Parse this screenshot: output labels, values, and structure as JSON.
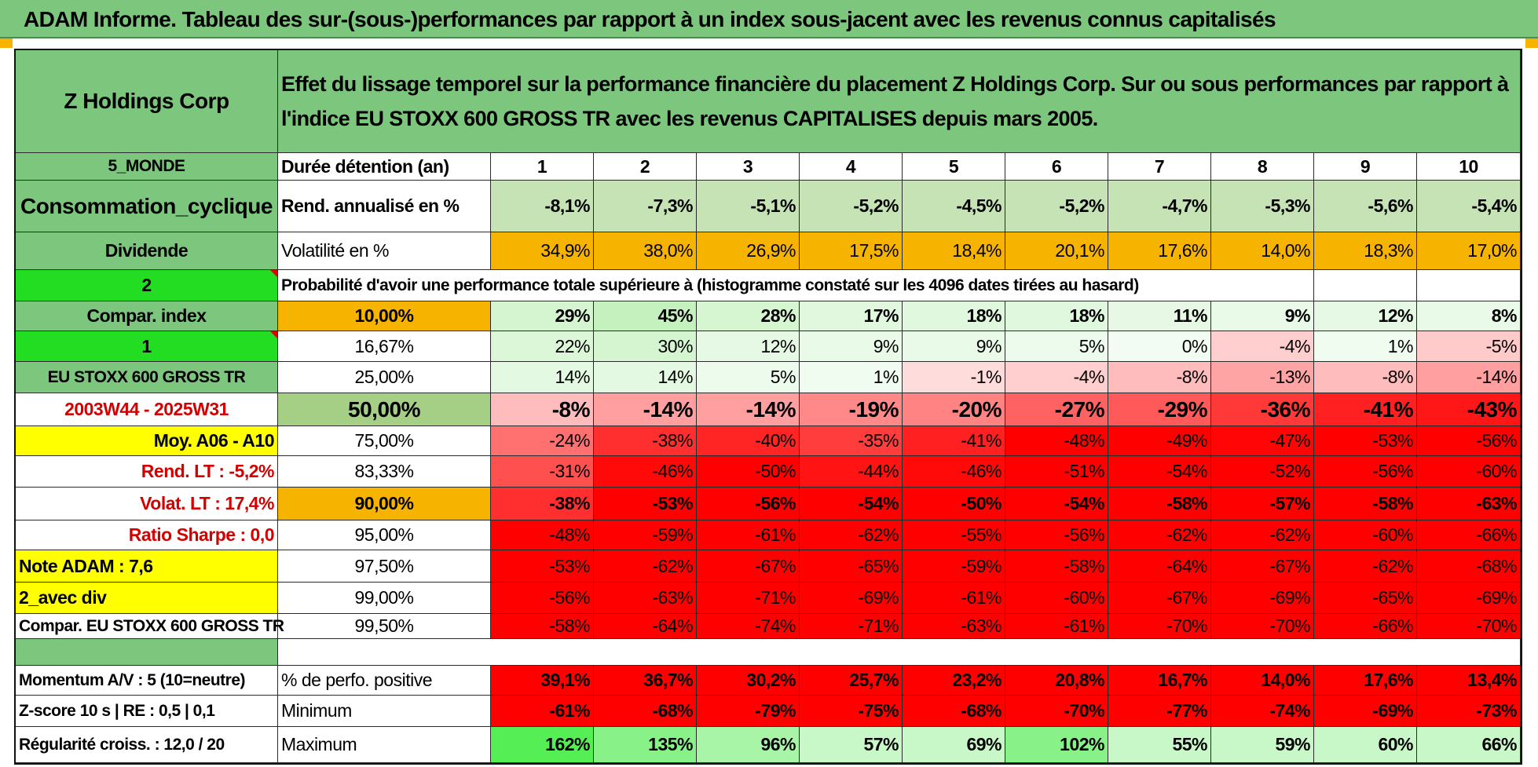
{
  "title": "ADAM Informe. Tableau des sur-(sous-)performances par rapport à un index sous-jacent avec les revenus connus capitalisés",
  "left": {
    "company": "Z Holdings Corp",
    "region": "5_MONDE",
    "sector": "Consommation_cyclique",
    "dividend_label": "Dividende",
    "value_2": "2",
    "compar_index": "Compar. index",
    "value_1": "1",
    "index_name": "EU STOXX 600 GROSS TR",
    "period": "2003W44 - 2025W31",
    "moy": "Moy. A06 - A10",
    "rend_lt": "Rend. LT :    -5,2%",
    "volat_lt": "Volat. LT :    17,4%",
    "sharpe": "Ratio Sharpe :     0,0",
    "note": "Note ADAM : 7,6",
    "avec_div": "2_avec div",
    "compar": "Compar. EU STOXX 600 GROSS TR",
    "momentum": "Momentum A/V : 5 (10=neutre)",
    "zscore": "Z-score 10 s | RE : 0,5 | 0,1",
    "regularite": "Régularité croiss. : 12,0 / 20"
  },
  "header_text": "Effet du lissage temporel sur la performance financière du placement Z Holdings Corp. Sur ou sous performances par rapport à l'indice EU STOXX 600 GROSS TR avec les revenus CAPITALISES depuis mars 2005.",
  "row_labels": {
    "duration": "Durée détention (an)",
    "rend": "Rend. annualisé en %",
    "vol": "Volatilité en %",
    "proba": "Probabilité d'avoir une performance totale supérieure à (histogramme constaté sur les 4096 dates tirées au hasard)",
    "positive": "% de perfo. positive",
    "minimum": "Minimum",
    "maximum": "Maximum"
  },
  "years": [
    "1",
    "2",
    "3",
    "4",
    "5",
    "6",
    "7",
    "8",
    "9",
    "10"
  ],
  "rend": [
    "-8,1%",
    "-7,3%",
    "-5,1%",
    "-5,2%",
    "-4,5%",
    "-5,2%",
    "-4,7%",
    "-5,3%",
    "-5,6%",
    "-5,4%"
  ],
  "vol": [
    "34,9%",
    "38,0%",
    "26,9%",
    "17,5%",
    "18,4%",
    "20,1%",
    "17,6%",
    "14,0%",
    "18,3%",
    "17,0%"
  ],
  "percentiles": [
    {
      "p": "10,00%",
      "values": [
        "29%",
        "45%",
        "28%",
        "17%",
        "18%",
        "18%",
        "11%",
        "9%",
        "12%",
        "8%"
      ]
    },
    {
      "p": "16,67%",
      "values": [
        "22%",
        "30%",
        "12%",
        "9%",
        "9%",
        "5%",
        "0%",
        "-4%",
        "1%",
        "-5%"
      ]
    },
    {
      "p": "25,00%",
      "values": [
        "14%",
        "14%",
        "5%",
        "1%",
        "-1%",
        "-4%",
        "-8%",
        "-13%",
        "-8%",
        "-14%"
      ]
    },
    {
      "p": "50,00%",
      "values": [
        "-8%",
        "-14%",
        "-14%",
        "-19%",
        "-20%",
        "-27%",
        "-29%",
        "-36%",
        "-41%",
        "-43%"
      ]
    },
    {
      "p": "75,00%",
      "values": [
        "-24%",
        "-38%",
        "-40%",
        "-35%",
        "-41%",
        "-48%",
        "-49%",
        "-47%",
        "-53%",
        "-56%"
      ]
    },
    {
      "p": "83,33%",
      "values": [
        "-31%",
        "-46%",
        "-50%",
        "-44%",
        "-46%",
        "-51%",
        "-54%",
        "-52%",
        "-56%",
        "-60%"
      ]
    },
    {
      "p": "90,00%",
      "values": [
        "-38%",
        "-53%",
        "-56%",
        "-54%",
        "-50%",
        "-54%",
        "-58%",
        "-57%",
        "-58%",
        "-63%"
      ]
    },
    {
      "p": "95,00%",
      "values": [
        "-48%",
        "-59%",
        "-61%",
        "-62%",
        "-55%",
        "-56%",
        "-62%",
        "-62%",
        "-60%",
        "-66%"
      ]
    },
    {
      "p": "97,50%",
      "values": [
        "-53%",
        "-62%",
        "-67%",
        "-65%",
        "-59%",
        "-58%",
        "-64%",
        "-67%",
        "-62%",
        "-68%"
      ]
    },
    {
      "p": "99,00%",
      "values": [
        "-56%",
        "-63%",
        "-71%",
        "-69%",
        "-61%",
        "-60%",
        "-67%",
        "-69%",
        "-65%",
        "-69%"
      ]
    },
    {
      "p": "99,50%",
      "values": [
        "-58%",
        "-64%",
        "-74%",
        "-71%",
        "-63%",
        "-61%",
        "-70%",
        "-70%",
        "-66%",
        "-70%"
      ]
    }
  ],
  "positive": [
    "39,1%",
    "36,7%",
    "30,2%",
    "25,7%",
    "23,2%",
    "20,8%",
    "16,7%",
    "14,0%",
    "17,6%",
    "13,4%"
  ],
  "minimum": [
    "-61%",
    "-68%",
    "-79%",
    "-75%",
    "-68%",
    "-70%",
    "-77%",
    "-74%",
    "-69%",
    "-73%"
  ],
  "maximum": [
    "162%",
    "135%",
    "96%",
    "57%",
    "69%",
    "102%",
    "55%",
    "59%",
    "60%",
    "66%"
  ],
  "colors": {
    "header_green": "#7dc67d",
    "bright_green": "#22dd22",
    "orange": "#f6b400",
    "yellow": "#ffff00",
    "strong_red": "#ff0000",
    "label_red": "#d40000"
  }
}
